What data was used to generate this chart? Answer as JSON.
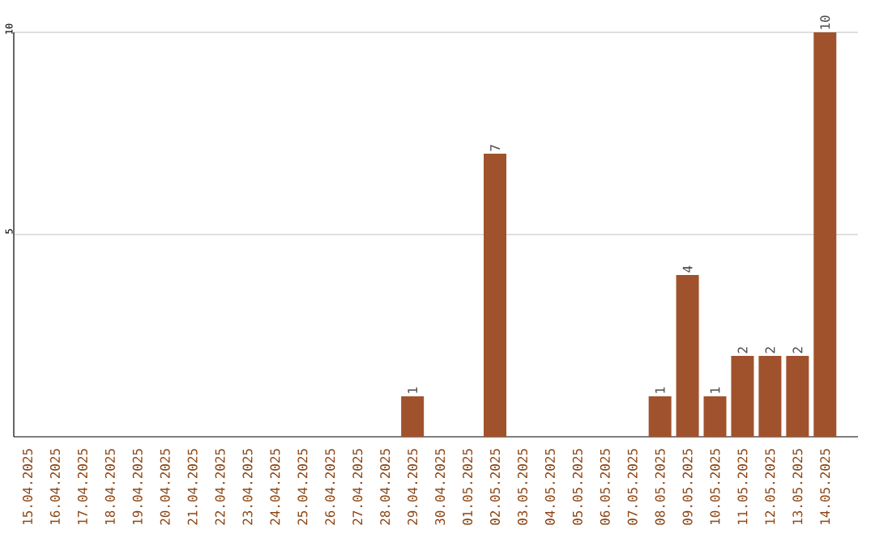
{
  "chart_data": {
    "type": "bar",
    "categories": [
      "15.04.2025",
      "16.04.2025",
      "17.04.2025",
      "18.04.2025",
      "19.04.2025",
      "20.04.2025",
      "21.04.2025",
      "22.04.2025",
      "23.04.2025",
      "24.04.2025",
      "25.04.2025",
      "26.04.2025",
      "27.04.2025",
      "28.04.2025",
      "29.04.2025",
      "30.04.2025",
      "01.05.2025",
      "02.05.2025",
      "03.05.2025",
      "04.05.2025",
      "05.05.2025",
      "06.05.2025",
      "07.05.2025",
      "08.05.2025",
      "09.05.2025",
      "10.05.2025",
      "11.05.2025",
      "12.05.2025",
      "13.05.2025",
      "14.05.2025"
    ],
    "values": [
      0,
      0,
      0,
      0,
      0,
      0,
      0,
      0,
      0,
      0,
      0,
      0,
      0,
      0,
      1,
      0,
      0,
      7,
      0,
      0,
      0,
      0,
      0,
      1,
      4,
      1,
      2,
      2,
      2,
      10
    ],
    "value_labels": [
      null,
      null,
      null,
      null,
      null,
      null,
      null,
      null,
      null,
      null,
      null,
      null,
      null,
      null,
      "1",
      null,
      null,
      "7",
      null,
      null,
      null,
      null,
      null,
      "1",
      "4",
      "1",
      "2",
      "2",
      "2",
      "10"
    ],
    "color": "#a0522d",
    "ylim": [
      0,
      10
    ],
    "yticks": [
      5,
      10
    ],
    "grid": "y"
  }
}
